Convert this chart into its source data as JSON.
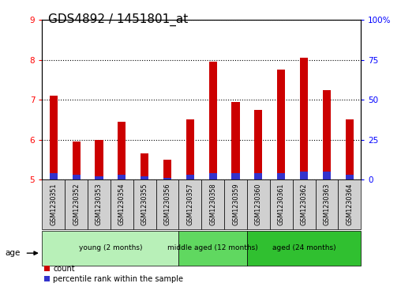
{
  "title": "GDS4892 / 1451801_at",
  "samples": [
    "GSM1230351",
    "GSM1230352",
    "GSM1230353",
    "GSM1230354",
    "GSM1230355",
    "GSM1230356",
    "GSM1230357",
    "GSM1230358",
    "GSM1230359",
    "GSM1230360",
    "GSM1230361",
    "GSM1230362",
    "GSM1230363",
    "GSM1230364"
  ],
  "count_values": [
    7.1,
    5.95,
    6.0,
    6.45,
    5.65,
    5.5,
    6.5,
    7.95,
    6.95,
    6.75,
    7.75,
    8.05,
    7.25,
    6.5
  ],
  "percentile_values": [
    4,
    3,
    2,
    3,
    2,
    1,
    3,
    4,
    4,
    4,
    4,
    5,
    5,
    3
  ],
  "ylim_left": [
    5,
    9
  ],
  "ylim_right": [
    0,
    100
  ],
  "yticks_left": [
    5,
    6,
    7,
    8,
    9
  ],
  "yticks_right": [
    0,
    25,
    50,
    75,
    100
  ],
  "ytick_labels_right": [
    "0",
    "25",
    "50",
    "75",
    "100%"
  ],
  "bar_bottom": 5.0,
  "count_color": "#cc0000",
  "percentile_color": "#3333cc",
  "groups": [
    {
      "label": "young (2 months)",
      "indices": [
        0,
        1,
        2,
        3,
        4,
        5
      ],
      "color": "#b8f0b8"
    },
    {
      "label": "middle aged (12 months)",
      "indices": [
        6,
        7,
        8
      ],
      "color": "#60d860"
    },
    {
      "label": "aged (24 months)",
      "indices": [
        9,
        10,
        11,
        12,
        13
      ],
      "color": "#30c030"
    }
  ],
  "age_label": "age",
  "legend_count_label": "count",
  "legend_percentile_label": "percentile rank within the sample",
  "grid_color": "#000000",
  "bar_width": 0.35,
  "title_fontsize": 11,
  "tick_fontsize": 7.5,
  "label_fontsize": 8
}
